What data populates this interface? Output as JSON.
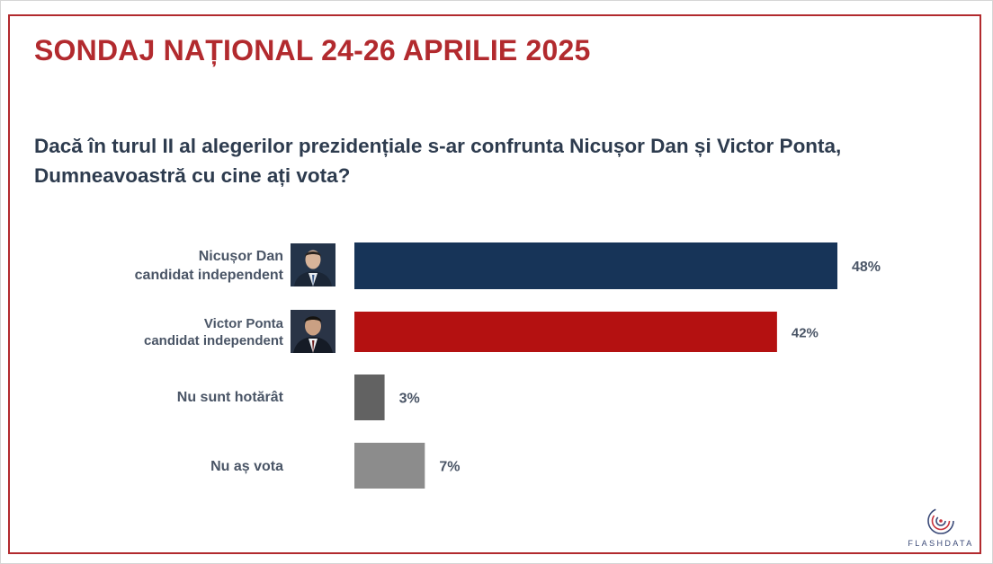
{
  "title": "SONDAJ NAȚIONAL 24-26 APRILIE 2025",
  "question": {
    "line1": "Dacă în turul II al alegerilor prezidențiale s-ar confrunta Nicușor Dan și Victor Ponta,",
    "line2": "Dumneavoastră cu cine ați vota?"
  },
  "colors": {
    "frame": "#b22a2e",
    "dan": "#173458",
    "ponta": "#b41111",
    "undecided": "#626262",
    "wouldnt_vote": "#8c8c8c"
  },
  "chart_data": {
    "type": "bar",
    "orientation": "horizontal",
    "unit": "%",
    "xlim": [
      0,
      48
    ],
    "categories": [
      {
        "line1": "Nicușor Dan",
        "line2": "candidat independent"
      },
      {
        "line1": "Victor Ponta",
        "line2": "candidat independent"
      },
      {
        "line1": "Nu sunt hotărât",
        "line2": ""
      },
      {
        "line1": "Nu aș vota",
        "line2": ""
      }
    ],
    "values": [
      48,
      42,
      3,
      7
    ],
    "value_labels": [
      "48%",
      "42%",
      "3%",
      "7%"
    ]
  },
  "logo": {
    "text": "FLASHDATA"
  }
}
